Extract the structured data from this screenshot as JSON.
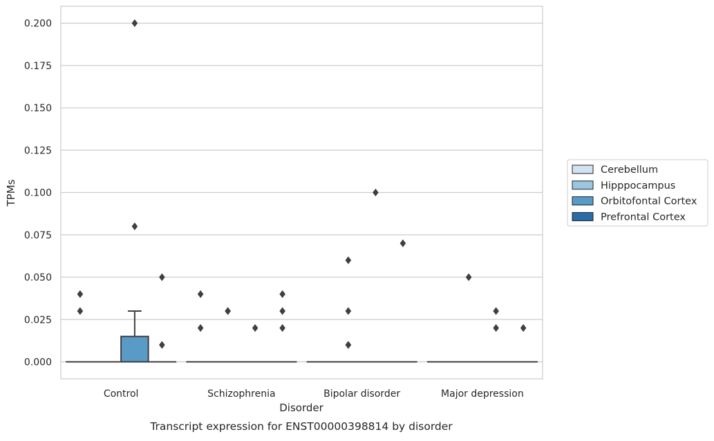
{
  "chart_data": {
    "type": "box",
    "caption": "Transcript expression for ENST00000398814 by disorder",
    "xlabel": "Disorder",
    "ylabel": "TPMs",
    "ylim": [
      -0.01,
      0.21
    ],
    "yticks": [
      0.0,
      0.025,
      0.05,
      0.075,
      0.1,
      0.125,
      0.15,
      0.175,
      0.2
    ],
    "ytick_labels": [
      "0.000",
      "0.025",
      "0.050",
      "0.075",
      "0.100",
      "0.125",
      "0.150",
      "0.175",
      "0.200"
    ],
    "grid": "horizontal",
    "legend_position": "right",
    "categories": [
      "Control",
      "Schizophrenia",
      "Bipolar disorder",
      "Major depression"
    ],
    "series": [
      {
        "name": "Cerebellum",
        "color": "#d1e2f1",
        "boxes": [
          {
            "q1": 0,
            "median": 0,
            "q3": 0,
            "whisker_low": 0,
            "whisker_high": 0,
            "outliers": [
              0.04,
              0.03
            ]
          },
          {
            "q1": 0,
            "median": 0,
            "q3": 0,
            "whisker_low": 0,
            "whisker_high": 0,
            "outliers": [
              0.04,
              0.02
            ]
          },
          {
            "q1": 0,
            "median": 0,
            "q3": 0,
            "whisker_low": 0,
            "whisker_high": 0,
            "outliers": []
          },
          {
            "q1": 0,
            "median": 0,
            "q3": 0,
            "whisker_low": 0,
            "whisker_high": 0,
            "outliers": []
          }
        ]
      },
      {
        "name": "Hipppocampus",
        "color": "#9ac6e0",
        "boxes": [
          {
            "q1": 0,
            "median": 0,
            "q3": 0,
            "whisker_low": 0,
            "whisker_high": 0,
            "outliers": []
          },
          {
            "q1": 0,
            "median": 0,
            "q3": 0,
            "whisker_low": 0,
            "whisker_high": 0,
            "outliers": [
              0.03,
              0.03
            ]
          },
          {
            "q1": 0,
            "median": 0,
            "q3": 0,
            "whisker_low": 0,
            "whisker_high": 0,
            "outliers": [
              0.06,
              0.03,
              0.01,
              0.01
            ]
          },
          {
            "q1": 0,
            "median": 0,
            "q3": 0,
            "whisker_low": 0,
            "whisker_high": 0,
            "outliers": [
              0.05
            ]
          }
        ]
      },
      {
        "name": "Orbitofontal Cortex",
        "color": "#5a9ac7",
        "boxes": [
          {
            "q1": 0,
            "median": 0,
            "q3": 0.015,
            "whisker_low": 0,
            "whisker_high": 0.03,
            "outliers": [
              0.2,
              0.08
            ]
          },
          {
            "q1": 0,
            "median": 0,
            "q3": 0,
            "whisker_low": 0,
            "whisker_high": 0,
            "outliers": [
              0.02
            ]
          },
          {
            "q1": 0,
            "median": 0,
            "q3": 0,
            "whisker_low": 0,
            "whisker_high": 0,
            "outliers": [
              0.1
            ]
          },
          {
            "q1": 0,
            "median": 0,
            "q3": 0,
            "whisker_low": 0,
            "whisker_high": 0,
            "outliers": [
              0.03,
              0.02
            ]
          }
        ]
      },
      {
        "name": "Prefrontal Cortex",
        "color": "#2a6ba9",
        "boxes": [
          {
            "q1": 0,
            "median": 0,
            "q3": 0,
            "whisker_low": 0,
            "whisker_high": 0,
            "outliers": [
              0.05,
              0.01
            ]
          },
          {
            "q1": 0,
            "median": 0,
            "q3": 0,
            "whisker_low": 0,
            "whisker_high": 0,
            "outliers": [
              0.04,
              0.03,
              0.02
            ]
          },
          {
            "q1": 0,
            "median": 0,
            "q3": 0,
            "whisker_low": 0,
            "whisker_high": 0,
            "outliers": [
              0.07
            ]
          },
          {
            "q1": 0,
            "median": 0,
            "q3": 0,
            "whisker_low": 0,
            "whisker_high": 0,
            "outliers": [
              0.02
            ]
          }
        ]
      }
    ]
  }
}
